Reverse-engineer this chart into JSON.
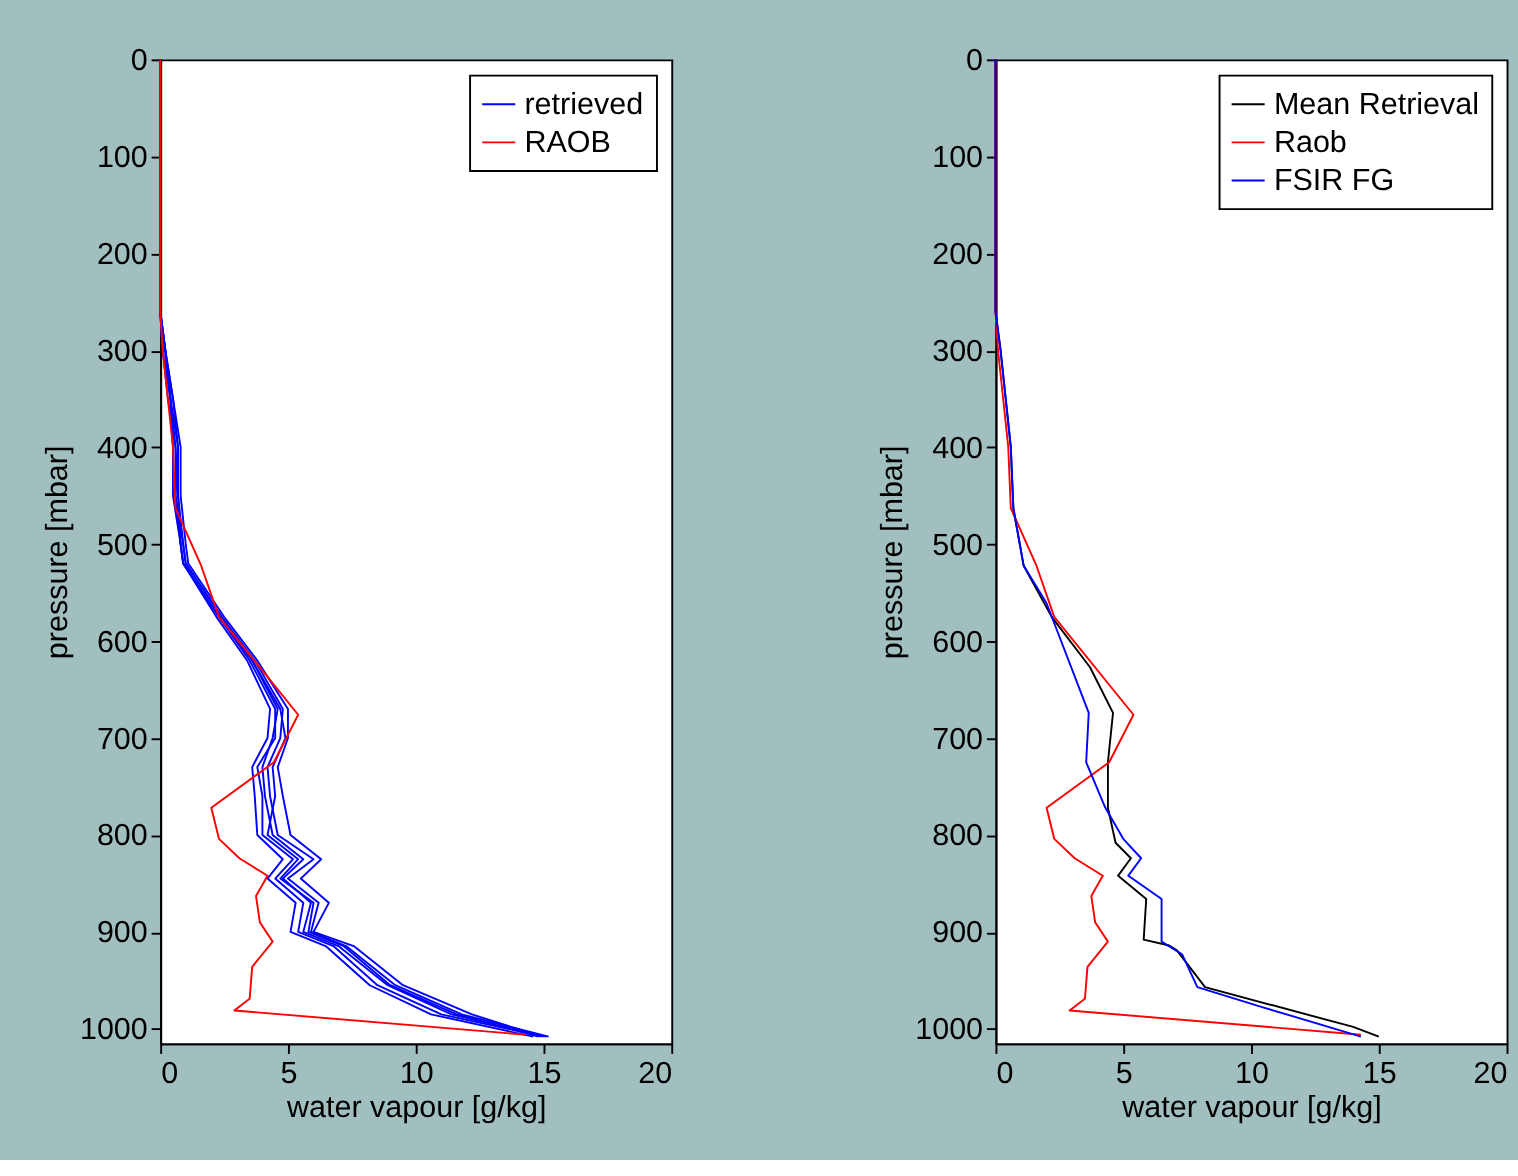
{
  "chart_data": [
    {
      "type": "line",
      "xlabel": "water vapour [g/kg]",
      "ylabel": "pressure [mbar]",
      "xlim": [
        0,
        20
      ],
      "xticks": [
        0,
        5,
        10,
        15,
        20
      ],
      "ylim": [
        1015,
        0
      ],
      "yticks": [
        0,
        100,
        200,
        300,
        400,
        500,
        600,
        700,
        800,
        900,
        1000
      ],
      "legend": "top right",
      "grid": false,
      "series": [
        {
          "name": "retrieved",
          "color": "#0000ff",
          "x": [
            0,
            0,
            0.2,
            0.4,
            0.6,
            0.6,
            0.8,
            0.9,
            2.3,
            3.5,
            4.5,
            4.5,
            3.8,
            4.0,
            4.0,
            5.2,
            4.5,
            5.6,
            5.4,
            6.8,
            8.5,
            11,
            15
          ],
          "values": [
            0,
            260,
            300,
            350,
            400,
            450,
            500,
            520,
            575,
            620,
            670,
            700,
            730,
            760,
            800,
            825,
            845,
            870,
            900,
            915,
            955,
            985,
            1008
          ]
        },
        {
          "color": "#0000ff",
          "x": [
            0,
            0,
            0.2,
            0.5,
            0.7,
            0.7,
            0.9,
            1.0,
            2.4,
            3.7,
            4.8,
            4.7,
            4.2,
            4.3,
            4.6,
            6.0,
            5.0,
            6.2,
            5.9,
            7.3,
            9.2,
            11.8,
            15.2
          ],
          "values": [
            0,
            260,
            300,
            350,
            400,
            450,
            500,
            520,
            575,
            620,
            670,
            700,
            730,
            760,
            800,
            825,
            845,
            870,
            900,
            915,
            955,
            985,
            1008
          ]
        },
        {
          "color": "#0000ff",
          "x": [
            0,
            0,
            0.1,
            0.4,
            0.5,
            0.5,
            0.8,
            0.9,
            2.2,
            3.4,
            4.3,
            4.2,
            3.6,
            3.7,
            3.8,
            4.8,
            4.2,
            5.3,
            5.1,
            6.5,
            8.2,
            10.6,
            14.6
          ],
          "values": [
            0,
            260,
            300,
            350,
            400,
            450,
            500,
            520,
            575,
            620,
            670,
            700,
            730,
            760,
            800,
            825,
            845,
            870,
            900,
            915,
            955,
            985,
            1008
          ]
        },
        {
          "color": "#0000ff",
          "x": [
            0,
            0,
            0.2,
            0.5,
            0.8,
            0.8,
            1.0,
            1.1,
            2.5,
            3.8,
            5.0,
            5.0,
            4.6,
            4.8,
            5.1,
            6.3,
            5.5,
            6.6,
            6.0,
            7.6,
            9.5,
            12.2,
            14.9
          ],
          "values": [
            0,
            260,
            300,
            350,
            400,
            450,
            500,
            520,
            575,
            620,
            670,
            700,
            730,
            760,
            800,
            825,
            845,
            870,
            900,
            915,
            955,
            985,
            1008
          ]
        },
        {
          "color": "#0000ff",
          "x": [
            0,
            0,
            0.1,
            0.3,
            0.6,
            0.7,
            0.8,
            0.9,
            2.3,
            3.6,
            4.6,
            4.4,
            4.0,
            4.1,
            4.4,
            5.6,
            4.8,
            5.9,
            5.6,
            7.0,
            8.9,
            11.4,
            15.1
          ],
          "values": [
            0,
            260,
            300,
            350,
            400,
            450,
            500,
            520,
            575,
            620,
            670,
            700,
            730,
            760,
            800,
            825,
            845,
            870,
            900,
            915,
            955,
            985,
            1008
          ]
        },
        {
          "color": "#0000ff",
          "x": [
            0,
            0,
            0.2,
            0.4,
            0.7,
            0.6,
            0.9,
            1.0,
            2.4,
            3.6,
            4.7,
            4.9,
            4.4,
            4.5,
            4.2,
            5.4,
            4.7,
            6.0,
            5.8,
            7.2,
            9.0,
            11.6,
            14.8
          ],
          "values": [
            0,
            260,
            300,
            350,
            400,
            450,
            500,
            520,
            575,
            620,
            670,
            700,
            730,
            760,
            800,
            825,
            845,
            870,
            900,
            915,
            955,
            985,
            1008
          ]
        },
        {
          "name": "RAOB",
          "color": "#ff0000",
          "x": [
            0,
            0,
            0.1,
            0.3,
            0.5,
            0.6,
            1.6,
            2.3,
            5.4,
            4.45,
            2.0,
            2.3,
            3.1,
            4.2,
            3.75,
            3.9,
            4.4,
            3.6,
            3.5,
            2.9,
            14.3
          ],
          "values": [
            0,
            260,
            300,
            350,
            400,
            463,
            522,
            575,
            676,
            725,
            772,
            804,
            824,
            842,
            863,
            890,
            910,
            936,
            969,
            981,
            1006
          ]
        }
      ]
    },
    {
      "type": "line",
      "xlabel": "water vapour [g/kg]",
      "ylabel": "pressure [mbar]",
      "xlim": [
        0,
        20
      ],
      "xticks": [
        0,
        5,
        10,
        15,
        20
      ],
      "ylim": [
        1015,
        0
      ],
      "yticks": [
        0,
        100,
        200,
        300,
        400,
        500,
        600,
        700,
        800,
        900,
        1000
      ],
      "legend": "top right",
      "grid": false,
      "series": [
        {
          "name": "Mean Retrieval",
          "color": "#000000",
          "x": [
            0,
            0,
            0.2,
            0.6,
            0.7,
            1.1,
            2.2,
            3.7,
            4.6,
            4.4,
            4.4,
            4.7,
            5.3,
            4.8,
            5.9,
            5.8,
            6.8,
            7.1,
            8.2,
            14.0,
            15.0
          ],
          "values": [
            0,
            260,
            300,
            400,
            463,
            522,
            575,
            627,
            674,
            725,
            772,
            808,
            824,
            842,
            866,
            908,
            914,
            919,
            957,
            998,
            1008
          ]
        },
        {
          "name": "Raob",
          "color": "#ff0000",
          "x": [
            0,
            0,
            0.1,
            0.3,
            0.5,
            0.6,
            1.6,
            2.3,
            5.4,
            4.45,
            2.0,
            2.3,
            3.1,
            4.2,
            3.75,
            3.9,
            4.4,
            3.6,
            3.5,
            2.9,
            14.3
          ],
          "values": [
            0,
            260,
            300,
            350,
            400,
            463,
            522,
            575,
            676,
            725,
            772,
            804,
            824,
            842,
            863,
            890,
            910,
            936,
            969,
            981,
            1006
          ]
        },
        {
          "name": "FSIR FG",
          "color": "#0000ff",
          "x": [
            0,
            0,
            0.2,
            0.6,
            0.7,
            1.1,
            2.0,
            3.65,
            3.55,
            4.3,
            5.0,
            5.7,
            5.2,
            6.5,
            6.5,
            7.3,
            7.9,
            10.5,
            14.3
          ],
          "values": [
            0,
            260,
            300,
            400,
            463,
            522,
            561,
            674,
            725,
            772,
            804,
            824,
            842,
            866,
            910,
            923,
            957,
            978,
            1008
          ]
        }
      ]
    }
  ]
}
